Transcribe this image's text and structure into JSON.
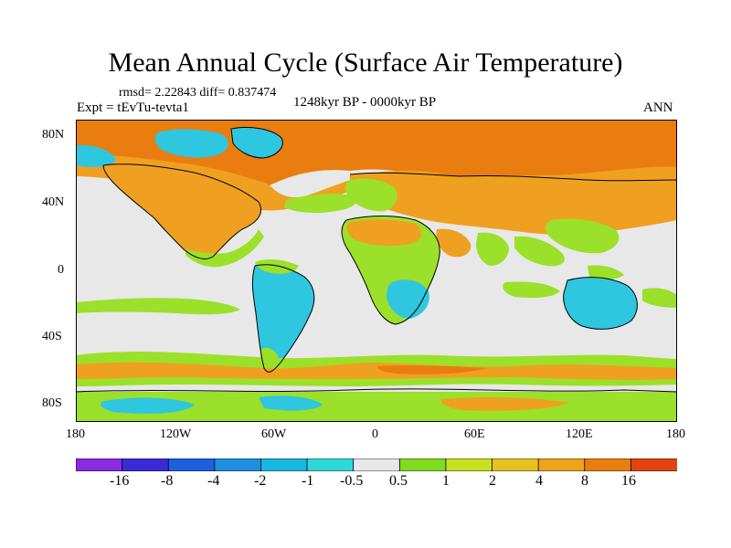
{
  "title": "Mean Annual Cycle (Surface Air Temperature)",
  "stats_text": "rmsd= 2.22843  diff= 0.837474",
  "experiment_text": "Expt = tEvTu-tevta1",
  "period_text": "1248kyr BP - 0000kyr BP",
  "season_text": "ANN",
  "map": {
    "projection": "cylindrical equidistant",
    "lat_labels": [
      "80N",
      "40N",
      "0",
      "40S",
      "80S"
    ],
    "lon_labels": [
      "180",
      "120W",
      "60W",
      "0",
      "60E",
      "120E",
      "180"
    ],
    "colors": {
      "background_ocean": "#e8e8e8",
      "land_warm": "#9be02a",
      "warm_orange": "#f0a020",
      "hot_orange": "#ea7d10",
      "cool_cyan": "#2fc6e0",
      "coastline": "#000000"
    }
  },
  "colorbar": {
    "labels": [
      "-16",
      "-8",
      "-4",
      "-2",
      "-1",
      "-0.5",
      "0.5",
      "1",
      "2",
      "4",
      "8",
      "16"
    ],
    "colors": [
      "#8a2be2",
      "#3a2bd6",
      "#1e5fe0",
      "#1e8fe0",
      "#19b6dd",
      "#2fd8d8",
      "#e8e8e8",
      "#7fdc1e",
      "#c6e21e",
      "#e6c21e",
      "#eea31a",
      "#ea7d10",
      "#e04510"
    ]
  }
}
